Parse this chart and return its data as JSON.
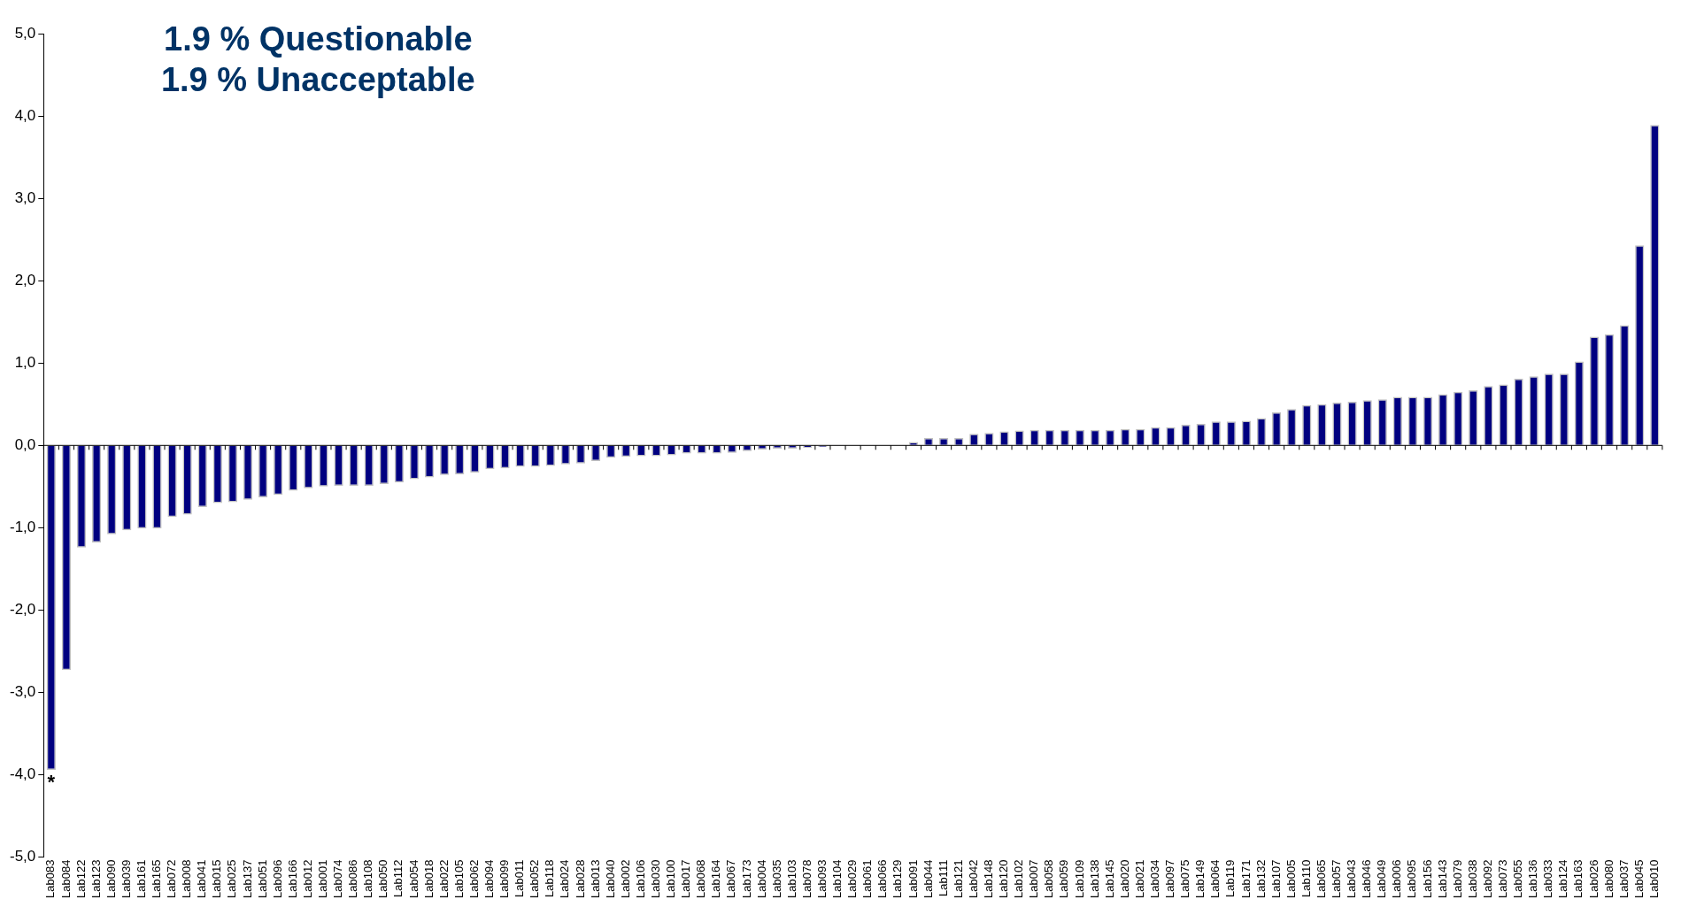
{
  "chart_data": {
    "type": "bar",
    "title": "1.9 % Questionable\n1.9 % Unacceptable",
    "categories": [
      "Lab083",
      "Lab084",
      "Lab122",
      "Lab123",
      "Lab090",
      "Lab039",
      "Lab161",
      "Lab165",
      "Lab072",
      "Lab008",
      "Lab041",
      "Lab015",
      "Lab025",
      "Lab137",
      "Lab051",
      "Lab096",
      "Lab166",
      "Lab012",
      "Lab001",
      "Lab074",
      "Lab086",
      "Lab108",
      "Lab050",
      "Lab112",
      "Lab054",
      "Lab018",
      "Lab022",
      "Lab105",
      "Lab062",
      "Lab094",
      "Lab099",
      "Lab011",
      "Lab052",
      "Lab118",
      "Lab024",
      "Lab028",
      "Lab013",
      "Lab040",
      "Lab002",
      "Lab106",
      "Lab030",
      "Lab100",
      "Lab017",
      "Lab068",
      "Lab164",
      "Lab067",
      "Lab173",
      "Lab004",
      "Lab035",
      "Lab103",
      "Lab078",
      "Lab093",
      "Lab104",
      "Lab029",
      "Lab061",
      "Lab066",
      "Lab129",
      "Lab091",
      "Lab044",
      "Lab111",
      "Lab121",
      "Lab042",
      "Lab148",
      "Lab120",
      "Lab102",
      "Lab007",
      "Lab058",
      "Lab059",
      "Lab109",
      "Lab138",
      "Lab145",
      "Lab020",
      "Lab021",
      "Lab034",
      "Lab097",
      "Lab075",
      "Lab149",
      "Lab064",
      "Lab119",
      "Lab171",
      "Lab132",
      "Lab107",
      "Lab005",
      "Lab110",
      "Lab065",
      "Lab057",
      "Lab043",
      "Lab046",
      "Lab049",
      "Lab006",
      "Lab095",
      "Lab156",
      "Lab143",
      "Lab079",
      "Lab038",
      "Lab092",
      "Lab073",
      "Lab055",
      "Lab136",
      "Lab033",
      "Lab124",
      "Lab163",
      "Lab026",
      "Lab080",
      "Lab037",
      "Lab045",
      "Lab010"
    ],
    "values": [
      -3.94,
      -2.73,
      -1.24,
      -1.18,
      -1.08,
      -1.03,
      -1.01,
      -1.01,
      -0.87,
      -0.84,
      -0.75,
      -0.7,
      -0.69,
      -0.66,
      -0.63,
      -0.6,
      -0.55,
      -0.52,
      -0.5,
      -0.49,
      -0.49,
      -0.49,
      -0.47,
      -0.45,
      -0.41,
      -0.39,
      -0.36,
      -0.35,
      -0.33,
      -0.29,
      -0.28,
      -0.26,
      -0.26,
      -0.25,
      -0.23,
      -0.22,
      -0.19,
      -0.15,
      -0.14,
      -0.13,
      -0.13,
      -0.12,
      -0.1,
      -0.1,
      -0.1,
      -0.09,
      -0.07,
      -0.05,
      -0.04,
      -0.04,
      -0.03,
      -0.02,
      -0.01,
      0,
      0,
      0,
      0,
      0.04,
      0.09,
      0.09,
      0.09,
      0.14,
      0.15,
      0.17,
      0.18,
      0.19,
      0.19,
      0.19,
      0.19,
      0.19,
      0.19,
      0.2,
      0.2,
      0.22,
      0.22,
      0.25,
      0.26,
      0.29,
      0.29,
      0.3,
      0.33,
      0.4,
      0.44,
      0.49,
      0.5,
      0.52,
      0.53,
      0.55,
      0.56,
      0.59,
      0.59,
      0.59,
      0.62,
      0.65,
      0.67,
      0.72,
      0.74,
      0.81,
      0.84,
      0.87,
      0.87,
      1.02,
      1.32,
      1.35,
      1.46,
      2.43,
      3.89
    ],
    "color": "#000080",
    "ylim": [
      -5,
      5
    ],
    "yticks": [
      {
        "value": -5,
        "label": "-5,0"
      },
      {
        "value": -4,
        "label": "-4,0"
      },
      {
        "value": -3,
        "label": "-3,0"
      },
      {
        "value": -2,
        "label": "-2,0"
      },
      {
        "value": -1,
        "label": "-1,0"
      },
      {
        "value": 0,
        "label": "0,0"
      },
      {
        "value": 1,
        "label": "1,0"
      },
      {
        "value": 2,
        "label": "2,0"
      },
      {
        "value": 3,
        "label": "3,0"
      },
      {
        "value": 4,
        "label": "4,0"
      },
      {
        "value": 5,
        "label": "5,0"
      }
    ],
    "annotations": [
      {
        "text": "*",
        "x": "Lab083",
        "y": -3.94
      }
    ],
    "legend": false
  }
}
